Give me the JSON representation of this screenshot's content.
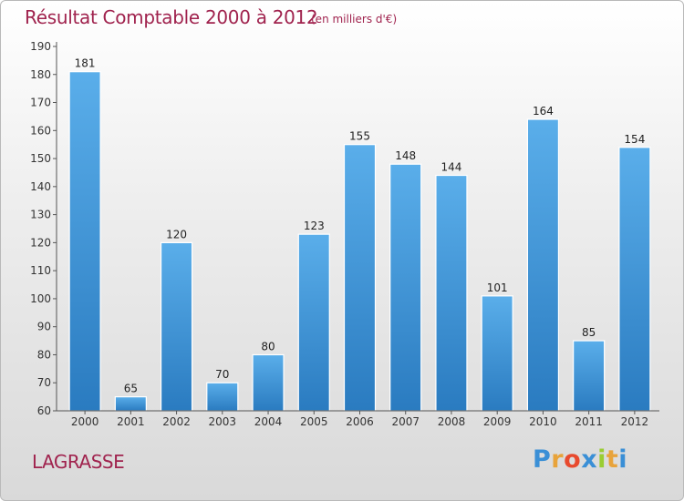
{
  "header": {
    "title": "Résultat Comptable 2000 à 2012",
    "subtitle": "(en milliers d'€)"
  },
  "footer": {
    "commune": "LAGRASSE",
    "brand_letters": [
      "P",
      "r",
      "o",
      "x",
      "i",
      "t",
      "i"
    ],
    "brand_colors": [
      "#3a8fd6",
      "#e8a33a",
      "#e84a2e",
      "#3a8fd6",
      "#9acd32",
      "#e8a33a",
      "#3a8fd6"
    ]
  },
  "chart_data": {
    "type": "bar",
    "title": "Résultat Comptable 2000 à 2012",
    "xlabel": "",
    "ylabel": "",
    "ylim": [
      60,
      190
    ],
    "ytick_step": 10,
    "grid": false,
    "categories": [
      "2000",
      "2001",
      "2002",
      "2003",
      "2004",
      "2005",
      "2006",
      "2007",
      "2008",
      "2009",
      "2010",
      "2011",
      "2012"
    ],
    "values": [
      181,
      65,
      120,
      70,
      80,
      123,
      155,
      148,
      144,
      101,
      164,
      85,
      154
    ],
    "bar_color_top": "#5aaeea",
    "bar_color_bottom": "#2a7bc0"
  }
}
